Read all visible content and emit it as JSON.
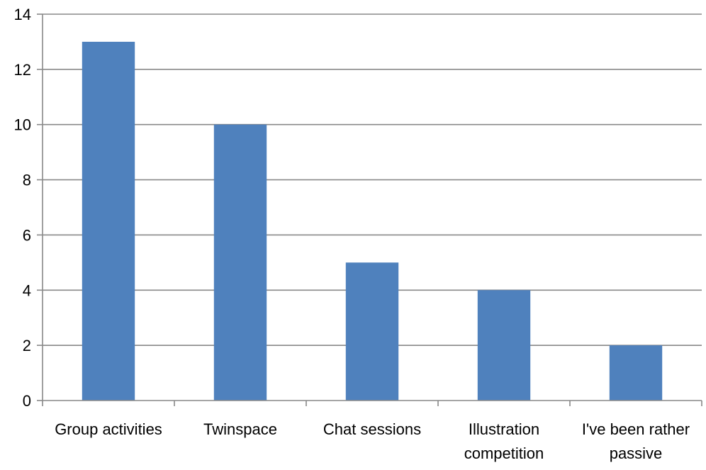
{
  "chart_data": {
    "type": "bar",
    "title": "",
    "xlabel": "",
    "ylabel": "",
    "categories": [
      [
        "Group activities"
      ],
      [
        "Twinspace"
      ],
      [
        "Chat sessions"
      ],
      [
        "Illustration",
        "competition"
      ],
      [
        "I've been rather",
        "passive"
      ]
    ],
    "values": [
      13,
      10,
      5,
      4,
      2
    ],
    "ylim": [
      0,
      14
    ],
    "y_ticks": [
      "0",
      "2",
      "4",
      "6",
      "8",
      "10",
      "12",
      "14"
    ],
    "grid": true,
    "legend": "none",
    "colors": {
      "bar": "#4f81bd",
      "grid": "#898989"
    }
  }
}
